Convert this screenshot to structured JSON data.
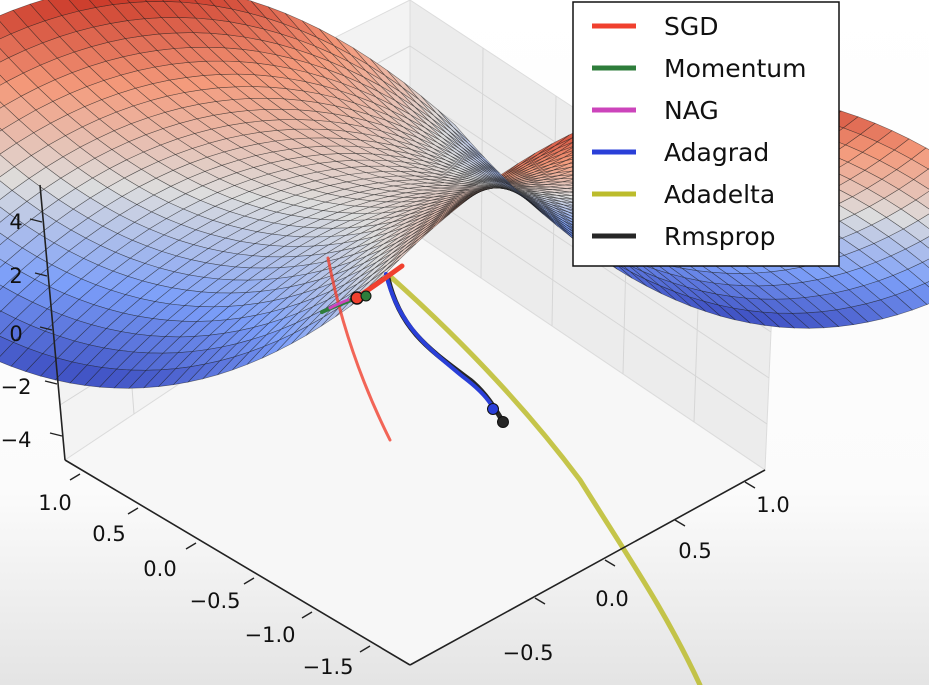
{
  "chart_data": {
    "type": "surface3d",
    "surface": "saddle",
    "colormap": "coolwarm",
    "grid": true,
    "legend_position": "top-right",
    "z_ticks": [
      "4",
      "2",
      "0",
      "−2",
      "−4"
    ],
    "x_ticks": [
      "1.0",
      "0.5",
      "0.0",
      "−0.5",
      "−1.0",
      "−1.5"
    ],
    "y_ticks": [
      "1.0",
      "0.5",
      "0.0",
      "−0.5"
    ],
    "series": [
      {
        "name": "SGD",
        "color": "#f0402e"
      },
      {
        "name": "Momentum",
        "color": "#2e7d3b"
      },
      {
        "name": "NAG",
        "color": "#cc44bb"
      },
      {
        "name": "Adagrad",
        "color": "#2a3fd8"
      },
      {
        "name": "Adadelta",
        "color": "#bcbc2c"
      },
      {
        "name": "Rmsprop",
        "color": "#262626"
      }
    ]
  }
}
